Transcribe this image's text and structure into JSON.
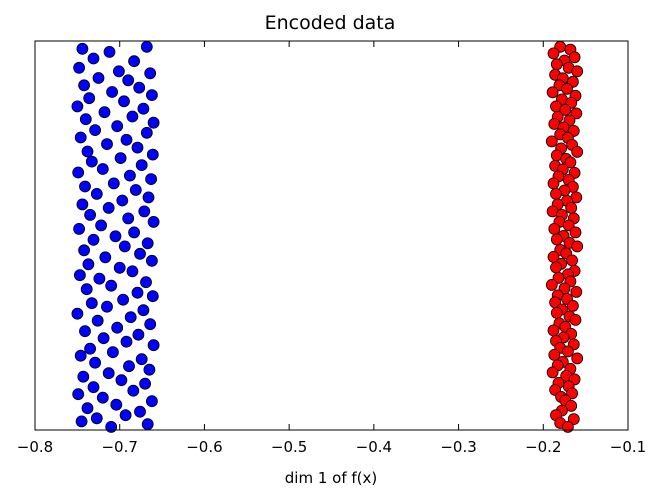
{
  "chart_data": {
    "type": "scatter",
    "title": "Encoded data",
    "xlabel": "dim 1 of f(x)",
    "ylabel": "",
    "xlim": [
      -0.8,
      -0.1
    ],
    "ylim": [
      0,
      1
    ],
    "y_ticks_shown": false,
    "grid": false,
    "legend": null,
    "x_ticks": [
      "−0.8",
      "−0.7",
      "−0.6",
      "−0.5",
      "−0.4",
      "−0.3",
      "−0.2",
      "−0.1"
    ],
    "series": [
      {
        "color": "#0000ff",
        "x_range": [
          -0.75,
          -0.66
        ],
        "points": [
          [
            -0.744,
            0.98
          ],
          [
            -0.712,
            0.972
          ],
          [
            -0.668,
            0.985
          ],
          [
            -0.731,
            0.955
          ],
          [
            -0.683,
            0.948
          ],
          [
            -0.748,
            0.931
          ],
          [
            -0.701,
            0.922
          ],
          [
            -0.664,
            0.917
          ],
          [
            -0.725,
            0.905
          ],
          [
            -0.69,
            0.899
          ],
          [
            -0.742,
            0.886
          ],
          [
            -0.677,
            0.88
          ],
          [
            -0.709,
            0.869
          ],
          [
            -0.662,
            0.861
          ],
          [
            -0.736,
            0.853
          ],
          [
            -0.695,
            0.845
          ],
          [
            -0.75,
            0.832
          ],
          [
            -0.672,
            0.826
          ],
          [
            -0.718,
            0.817
          ],
          [
            -0.685,
            0.806
          ],
          [
            -0.74,
            0.799
          ],
          [
            -0.66,
            0.79
          ],
          [
            -0.703,
            0.781
          ],
          [
            -0.729,
            0.771
          ],
          [
            -0.668,
            0.764
          ],
          [
            -0.746,
            0.752
          ],
          [
            -0.692,
            0.746
          ],
          [
            -0.715,
            0.735
          ],
          [
            -0.679,
            0.726
          ],
          [
            -0.738,
            0.716
          ],
          [
            -0.661,
            0.708
          ],
          [
            -0.699,
            0.699
          ],
          [
            -0.733,
            0.69
          ],
          [
            -0.674,
            0.681
          ],
          [
            -0.72,
            0.671
          ],
          [
            -0.749,
            0.662
          ],
          [
            -0.688,
            0.654
          ],
          [
            -0.663,
            0.645
          ],
          [
            -0.707,
            0.634
          ],
          [
            -0.741,
            0.626
          ],
          [
            -0.681,
            0.617
          ],
          [
            -0.727,
            0.607
          ],
          [
            -0.666,
            0.598
          ],
          [
            -0.697,
            0.59
          ],
          [
            -0.744,
            0.58
          ],
          [
            -0.713,
            0.571
          ],
          [
            -0.671,
            0.562
          ],
          [
            -0.735,
            0.553
          ],
          [
            -0.69,
            0.544
          ],
          [
            -0.66,
            0.535
          ],
          [
            -0.722,
            0.526
          ],
          [
            -0.748,
            0.517
          ],
          [
            -0.683,
            0.508
          ],
          [
            -0.705,
            0.498
          ],
          [
            -0.731,
            0.489
          ],
          [
            -0.667,
            0.48
          ],
          [
            -0.694,
            0.472
          ],
          [
            -0.742,
            0.462
          ],
          [
            -0.676,
            0.453
          ],
          [
            -0.717,
            0.444
          ],
          [
            -0.662,
            0.435
          ],
          [
            -0.737,
            0.426
          ],
          [
            -0.7,
            0.417
          ],
          [
            -0.685,
            0.408
          ],
          [
            -0.747,
            0.398
          ],
          [
            -0.724,
            0.389
          ],
          [
            -0.669,
            0.38
          ],
          [
            -0.71,
            0.371
          ],
          [
            -0.739,
            0.362
          ],
          [
            -0.679,
            0.353
          ],
          [
            -0.661,
            0.344
          ],
          [
            -0.696,
            0.335
          ],
          [
            -0.733,
            0.326
          ],
          [
            -0.715,
            0.317
          ],
          [
            -0.672,
            0.308
          ],
          [
            -0.75,
            0.299
          ],
          [
            -0.687,
            0.29
          ],
          [
            -0.726,
            0.281
          ],
          [
            -0.664,
            0.272
          ],
          [
            -0.703,
            0.263
          ],
          [
            -0.741,
            0.254
          ],
          [
            -0.678,
            0.245
          ],
          [
            -0.719,
            0.236
          ],
          [
            -0.692,
            0.227
          ],
          [
            -0.66,
            0.218
          ],
          [
            -0.735,
            0.209
          ],
          [
            -0.708,
            0.2
          ],
          [
            -0.746,
            0.191
          ],
          [
            -0.674,
            0.182
          ],
          [
            -0.729,
            0.173
          ],
          [
            -0.689,
            0.164
          ],
          [
            -0.665,
            0.155
          ],
          [
            -0.713,
            0.146
          ],
          [
            -0.743,
            0.137
          ],
          [
            -0.698,
            0.128
          ],
          [
            -0.67,
            0.119
          ],
          [
            -0.731,
            0.11
          ],
          [
            -0.684,
            0.101
          ],
          [
            -0.749,
            0.092
          ],
          [
            -0.72,
            0.083
          ],
          [
            -0.662,
            0.074
          ],
          [
            -0.704,
            0.065
          ],
          [
            -0.738,
            0.056
          ],
          [
            -0.676,
            0.047
          ],
          [
            -0.693,
            0.038
          ],
          [
            -0.727,
            0.03
          ],
          [
            -0.745,
            0.022
          ],
          [
            -0.667,
            0.015
          ],
          [
            -0.71,
            0.008
          ]
        ]
      },
      {
        "color": "#ff0000",
        "x_range": [
          -0.19,
          -0.16
        ],
        "points": [
          [
            -0.18,
            0.985
          ],
          [
            -0.168,
            0.978
          ],
          [
            -0.188,
            0.968
          ],
          [
            -0.163,
            0.958
          ],
          [
            -0.175,
            0.95
          ],
          [
            -0.184,
            0.94
          ],
          [
            -0.17,
            0.931
          ],
          [
            -0.16,
            0.922
          ],
          [
            -0.186,
            0.913
          ],
          [
            -0.177,
            0.904
          ],
          [
            -0.165,
            0.895
          ],
          [
            -0.181,
            0.886
          ],
          [
            -0.172,
            0.877
          ],
          [
            -0.189,
            0.868
          ],
          [
            -0.162,
            0.859
          ],
          [
            -0.178,
            0.85
          ],
          [
            -0.167,
            0.841
          ],
          [
            -0.185,
            0.832
          ],
          [
            -0.174,
            0.823
          ],
          [
            -0.161,
            0.814
          ],
          [
            -0.183,
            0.805
          ],
          [
            -0.169,
            0.796
          ],
          [
            -0.187,
            0.787
          ],
          [
            -0.176,
            0.778
          ],
          [
            -0.164,
            0.769
          ],
          [
            -0.18,
            0.76
          ],
          [
            -0.171,
            0.751
          ],
          [
            -0.19,
            0.742
          ],
          [
            -0.166,
            0.733
          ],
          [
            -0.179,
            0.724
          ],
          [
            -0.16,
            0.715
          ],
          [
            -0.184,
            0.706
          ],
          [
            -0.173,
            0.697
          ],
          [
            -0.168,
            0.688
          ],
          [
            -0.186,
            0.679
          ],
          [
            -0.177,
            0.67
          ],
          [
            -0.163,
            0.661
          ],
          [
            -0.182,
            0.652
          ],
          [
            -0.17,
            0.643
          ],
          [
            -0.188,
            0.634
          ],
          [
            -0.165,
            0.625
          ],
          [
            -0.175,
            0.616
          ],
          [
            -0.185,
            0.607
          ],
          [
            -0.161,
            0.598
          ],
          [
            -0.172,
            0.589
          ],
          [
            -0.183,
            0.58
          ],
          [
            -0.167,
            0.571
          ],
          [
            -0.189,
            0.562
          ],
          [
            -0.178,
            0.553
          ],
          [
            -0.164,
            0.544
          ],
          [
            -0.181,
            0.535
          ],
          [
            -0.17,
            0.526
          ],
          [
            -0.187,
            0.517
          ],
          [
            -0.162,
            0.508
          ],
          [
            -0.176,
            0.499
          ],
          [
            -0.184,
            0.49
          ],
          [
            -0.169,
            0.481
          ],
          [
            -0.16,
            0.472
          ],
          [
            -0.18,
            0.463
          ],
          [
            -0.173,
            0.454
          ],
          [
            -0.188,
            0.445
          ],
          [
            -0.166,
            0.436
          ],
          [
            -0.179,
            0.427
          ],
          [
            -0.185,
            0.418
          ],
          [
            -0.163,
            0.409
          ],
          [
            -0.171,
            0.4
          ],
          [
            -0.182,
            0.391
          ],
          [
            -0.168,
            0.382
          ],
          [
            -0.19,
            0.373
          ],
          [
            -0.175,
            0.364
          ],
          [
            -0.161,
            0.355
          ],
          [
            -0.183,
            0.346
          ],
          [
            -0.172,
            0.337
          ],
          [
            -0.186,
            0.328
          ],
          [
            -0.165,
            0.319
          ],
          [
            -0.178,
            0.31
          ],
          [
            -0.184,
            0.301
          ],
          [
            -0.169,
            0.292
          ],
          [
            -0.162,
            0.283
          ],
          [
            -0.181,
            0.274
          ],
          [
            -0.174,
            0.265
          ],
          [
            -0.188,
            0.256
          ],
          [
            -0.167,
            0.247
          ],
          [
            -0.176,
            0.238
          ],
          [
            -0.185,
            0.229
          ],
          [
            -0.164,
            0.22
          ],
          [
            -0.18,
            0.211
          ],
          [
            -0.171,
            0.202
          ],
          [
            -0.187,
            0.193
          ],
          [
            -0.16,
            0.184
          ],
          [
            -0.177,
            0.175
          ],
          [
            -0.183,
            0.166
          ],
          [
            -0.168,
            0.157
          ],
          [
            -0.189,
            0.148
          ],
          [
            -0.173,
            0.139
          ],
          [
            -0.163,
            0.13
          ],
          [
            -0.182,
            0.121
          ],
          [
            -0.17,
            0.112
          ],
          [
            -0.186,
            0.103
          ],
          [
            -0.166,
            0.094
          ],
          [
            -0.179,
            0.085
          ],
          [
            -0.174,
            0.076
          ],
          [
            -0.167,
            0.062
          ],
          [
            -0.178,
            0.05
          ],
          [
            -0.185,
            0.038
          ],
          [
            -0.164,
            0.028
          ],
          [
            -0.18,
            0.018
          ],
          [
            -0.171,
            0.008
          ]
        ]
      }
    ]
  }
}
